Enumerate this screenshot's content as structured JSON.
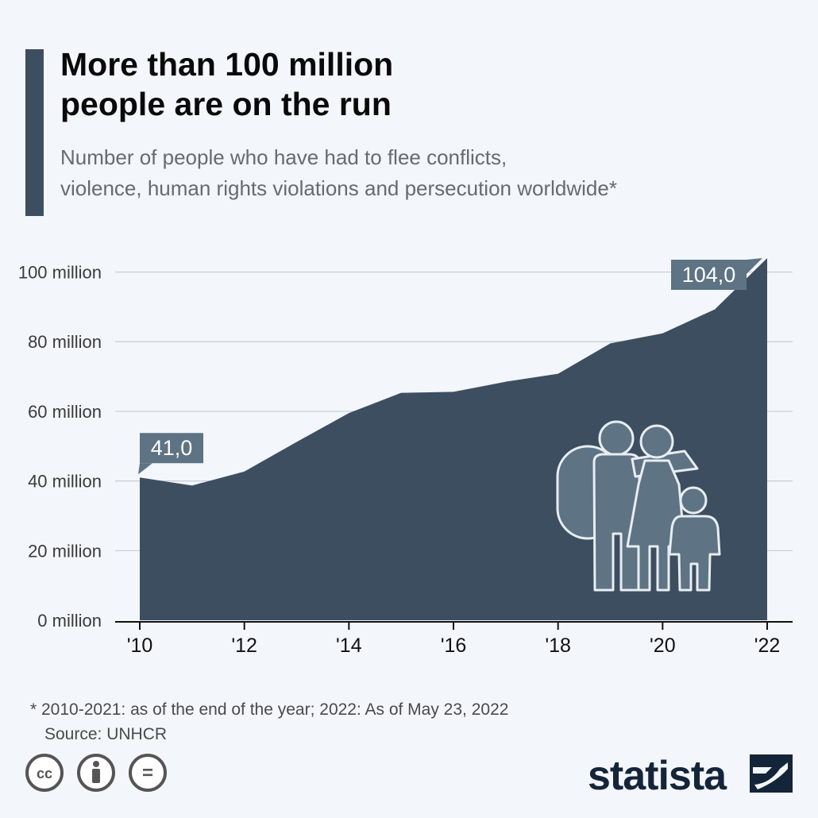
{
  "header": {
    "title_line1": "More than 100 million",
    "title_line2": "people are on the run",
    "subtitle_line1": "Number of people who have had to flee conflicts,",
    "subtitle_line2": "violence, human rights violations and persecution worldwide*"
  },
  "chart_data": {
    "type": "area",
    "x": [
      2010,
      2011,
      2012,
      2013,
      2014,
      2015,
      2016,
      2017,
      2018,
      2019,
      2020,
      2021,
      2022
    ],
    "x_tick_labels": [
      "'10",
      "'12",
      "'14",
      "'16",
      "'18",
      "'20",
      "'22"
    ],
    "x_tick_values": [
      2010,
      2012,
      2014,
      2016,
      2018,
      2020,
      2022
    ],
    "series": [
      {
        "values": [
          41.0,
          38.7,
          42.7,
          51.2,
          59.5,
          65.3,
          65.6,
          68.5,
          70.8,
          79.5,
          82.4,
          89.3,
          104.0
        ]
      }
    ],
    "y_unit": "million",
    "y_tick_labels": [
      "0 million",
      "20 million",
      "40 million",
      "60 million",
      "80 million",
      "100 million"
    ],
    "y_tick_values": [
      0,
      20,
      40,
      60,
      80,
      100
    ],
    "ylim": [
      0,
      104
    ],
    "data_labels": [
      {
        "x": 2010,
        "text": "41,0"
      },
      {
        "x": 2022,
        "text": "104,0"
      }
    ],
    "grid": true,
    "colors": {
      "area": "#3d4e60",
      "label_box": "#5e7383",
      "grid": "#c8cdd2",
      "icon": "#5e7383"
    }
  },
  "icon": {
    "name": "refugee-family-icon"
  },
  "footer": {
    "footnote": "* 2010-2021: as of the end of the year; 2022: As of May 23, 2022",
    "source": "Source: UNHCR",
    "license_icons": [
      "cc-icon",
      "attribution-icon",
      "no-derivatives-icon"
    ],
    "license_glyphs": [
      "cc",
      "="
    ],
    "brand": "statista"
  }
}
